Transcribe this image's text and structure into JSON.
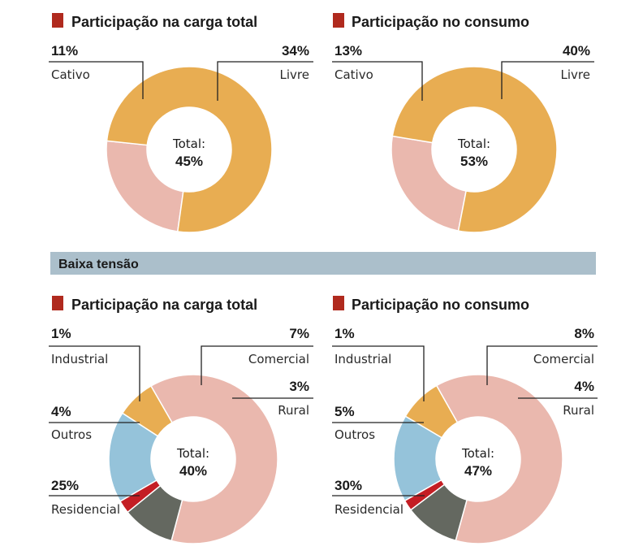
{
  "colors": {
    "title_marker": "#b02a1e",
    "cativo": "#eab8ae",
    "livre": "#e8ad52",
    "industrial": "#c41e24",
    "comercial": "#95c3da",
    "rural": "#e8ad52",
    "residencial": "#eab8ae",
    "outros": "#646860",
    "leader": "#222222",
    "band": "#abbfcb"
  },
  "section_band": {
    "label": "Baixa tensão"
  },
  "chart_data": [
    {
      "type": "donut",
      "title": "Participação na carga total",
      "center_label": "Total:",
      "center_value": "45%",
      "slices": [
        {
          "name": "Cativo",
          "pct_label": "11%",
          "value": 11,
          "color_key": "cativo"
        },
        {
          "name": "Livre",
          "pct_label": "34%",
          "value": 34,
          "color_key": "livre"
        }
      ]
    },
    {
      "type": "donut",
      "title": "Participação no consumo",
      "center_label": "Total:",
      "center_value": "53%",
      "slices": [
        {
          "name": "Cativo",
          "pct_label": "13%",
          "value": 13,
          "color_key": "cativo"
        },
        {
          "name": "Livre",
          "pct_label": "40%",
          "value": 40,
          "color_key": "livre"
        }
      ]
    },
    {
      "type": "donut",
      "title": "Participação na carga total",
      "center_label": "Total:",
      "center_value": "40%",
      "slices": [
        {
          "name": "Industrial",
          "pct_label": "1%",
          "value": 1,
          "color_key": "industrial"
        },
        {
          "name": "Comercial",
          "pct_label": "7%",
          "value": 7,
          "color_key": "comercial"
        },
        {
          "name": "Rural",
          "pct_label": "3%",
          "value": 3,
          "color_key": "rural"
        },
        {
          "name": "Residencial",
          "pct_label": "25%",
          "value": 25,
          "color_key": "residencial"
        },
        {
          "name": "Outros",
          "pct_label": "4%",
          "value": 4,
          "color_key": "outros"
        }
      ]
    },
    {
      "type": "donut",
      "title": "Participação no consumo",
      "center_label": "Total:",
      "center_value": "47%",
      "slices": [
        {
          "name": "Industrial",
          "pct_label": "1%",
          "value": 1,
          "color_key": "industrial"
        },
        {
          "name": "Comercial",
          "pct_label": "8%",
          "value": 8,
          "color_key": "comercial"
        },
        {
          "name": "Rural",
          "pct_label": "4%",
          "value": 4,
          "color_key": "rural"
        },
        {
          "name": "Residencial",
          "pct_label": "30%",
          "value": 30,
          "color_key": "residencial"
        },
        {
          "name": "Outros",
          "pct_label": "5%",
          "value": 5,
          "color_key": "outros"
        }
      ]
    }
  ]
}
